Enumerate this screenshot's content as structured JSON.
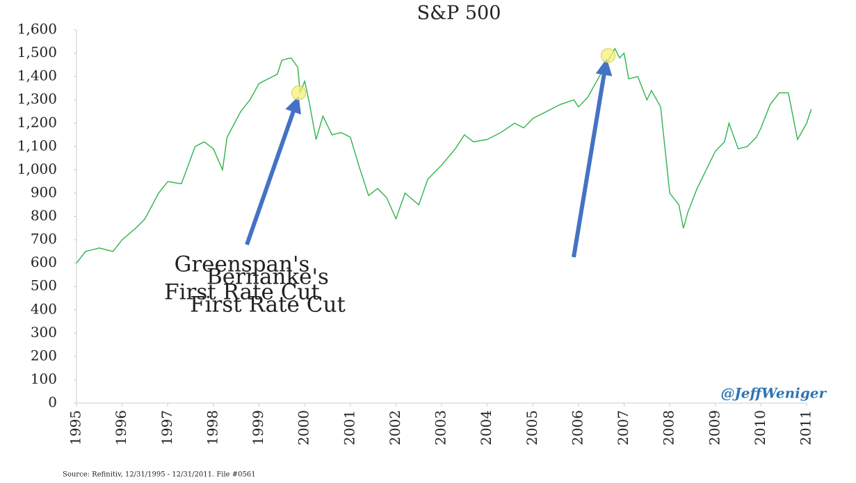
{
  "chart_data": {
    "type": "line",
    "title": "S&P 500",
    "source": "Source: Refinitiv, 12/31/1995 - 12/31/2011. File #0561",
    "watermark": "@JeffWeniger",
    "xlim": [
      1995,
      2011
    ],
    "xticks": [
      1995,
      1996,
      1997,
      1998,
      1999,
      2000,
      2001,
      2002,
      2003,
      2004,
      2005,
      2006,
      2007,
      2008,
      2009,
      2010,
      2011
    ],
    "ylim": [
      0,
      1600
    ],
    "yticks": [
      0,
      100,
      200,
      300,
      400,
      500,
      600,
      700,
      800,
      900,
      {
        "value": 1000,
        "label": "1,000"
      },
      {
        "value": 1100,
        "label": "1,100"
      },
      {
        "value": 1200,
        "label": "1,200"
      },
      {
        "value": 1300,
        "label": "1,300"
      },
      {
        "value": 1400,
        "label": "1,400"
      },
      {
        "value": 1500,
        "label": "1,500"
      },
      {
        "value": 1600,
        "label": "1,600"
      }
    ],
    "series": [
      {
        "color": "#2db34a",
        "x": [
          1995.0,
          1995.2,
          1995.5,
          1995.8,
          1996.0,
          1996.3,
          1996.5,
          1996.8,
          1997.0,
          1997.3,
          1997.6,
          1997.8,
          1998.0,
          1998.2,
          1998.3,
          1998.6,
          1998.8,
          1999.0,
          1999.2,
          1999.4,
          1999.5,
          1999.7,
          1999.85,
          1999.9,
          2000.0,
          2000.1,
          2000.25,
          2000.4,
          2000.6,
          2000.8,
          2001.0,
          2001.2,
          2001.4,
          2001.6,
          2001.8,
          2002.0,
          2002.2,
          2002.5,
          2002.7,
          2003.0,
          2003.3,
          2003.5,
          2003.7,
          2004.0,
          2004.3,
          2004.6,
          2004.8,
          2005.0,
          2005.3,
          2005.6,
          2005.9,
          2006.0,
          2006.2,
          2006.4,
          2006.6,
          2006.8,
          2006.9,
          2007.0,
          2007.1,
          2007.3,
          2007.5,
          2007.6,
          2007.8,
          2008.0,
          2008.2,
          2008.3,
          2008.4,
          2008.6,
          2008.8,
          2009.0,
          2009.2,
          2009.3,
          2009.5,
          2009.7,
          2009.9,
          2010.0,
          2010.2,
          2010.4,
          2010.6,
          2010.8,
          2011.0,
          2011.1
        ],
        "values": [
          600,
          650,
          665,
          650,
          700,
          750,
          790,
          900,
          950,
          940,
          1100,
          1120,
          1090,
          1000,
          1140,
          1250,
          1300,
          1370,
          1390,
          1410,
          1470,
          1480,
          1440,
          1330,
          1380,
          1290,
          1130,
          1230,
          1150,
          1160,
          1140,
          1010,
          890,
          920,
          880,
          790,
          900,
          850,
          960,
          1020,
          1090,
          1150,
          1120,
          1130,
          1160,
          1200,
          1180,
          1220,
          1250,
          1280,
          1300,
          1270,
          1310,
          1380,
          1450,
          1520,
          1480,
          1500,
          1390,
          1400,
          1300,
          1340,
          1270,
          900,
          850,
          750,
          820,
          920,
          1000,
          1080,
          1120,
          1200,
          1090,
          1100,
          1140,
          1180,
          1280,
          1330,
          1330,
          1130,
          1200,
          1260
        ]
      }
    ],
    "annotations": [
      {
        "lines": [
          "Greenspan's",
          "First Rate Cut"
        ],
        "x": 1999.87,
        "y": 1330
      },
      {
        "lines": [
          "Bernanke's",
          "First Rate Cut"
        ],
        "x": 2006.65,
        "y": 1490
      }
    ]
  }
}
